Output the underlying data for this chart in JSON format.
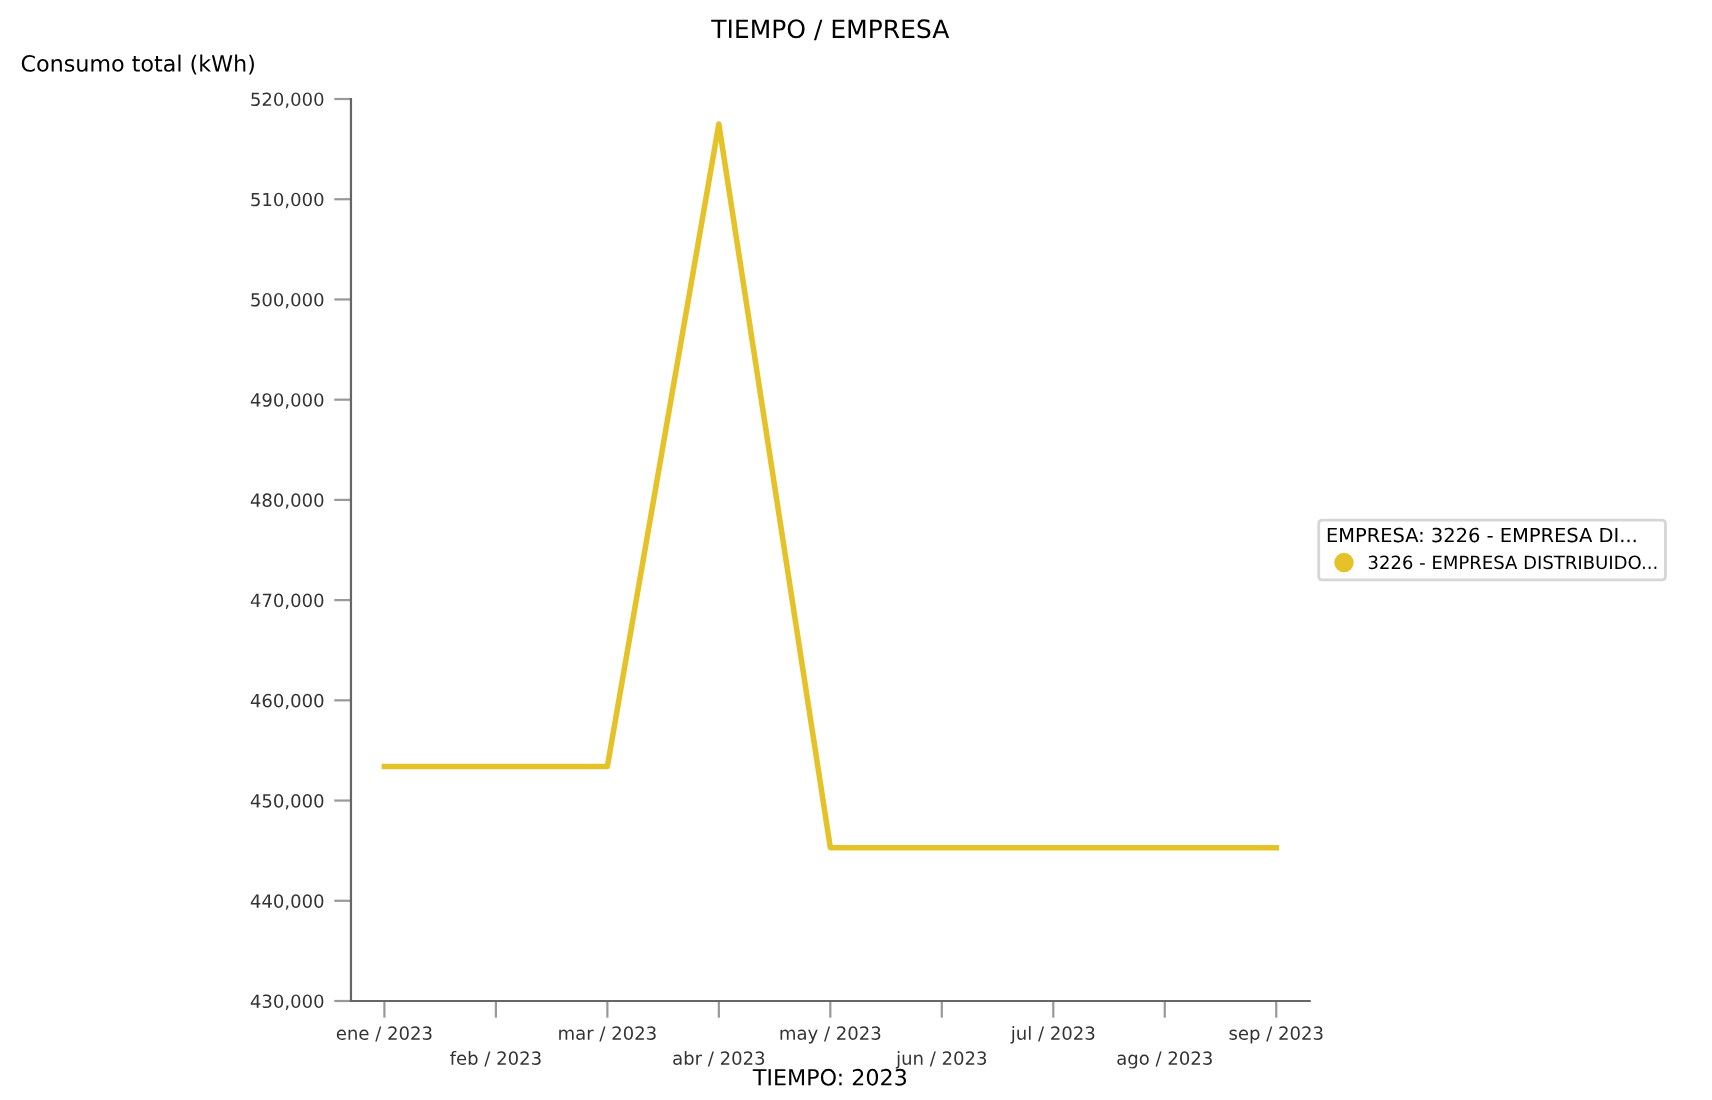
{
  "chart_data": {
    "type": "line",
    "title": "TIEMPO / EMPRESA",
    "xlabel": "TIEMPO: 2023",
    "ylabel": "Consumo total (kWh)",
    "legend_title": "EMPRESA: 3226 - EMPRESA DI...",
    "categories": [
      "ene / 2023",
      "feb / 2023",
      "mar / 2023",
      "abr / 2023",
      "may / 2023",
      "jun / 2023",
      "jul / 2023",
      "ago / 2023",
      "sep / 2023"
    ],
    "series": [
      {
        "name": "3226 - EMPRESA DISTRIBUIDO...",
        "color": "#e6c229",
        "values": [
          453400,
          453400,
          453400,
          517500,
          445300,
          445300,
          445300,
          445300,
          445300
        ]
      }
    ],
    "ylim": [
      430000,
      520000
    ],
    "yticks": [
      {
        "value": 430000,
        "label": "430,000"
      },
      {
        "value": 440000,
        "label": "440,000"
      },
      {
        "value": 450000,
        "label": "450,000"
      },
      {
        "value": 460000,
        "label": "460,000"
      },
      {
        "value": 470000,
        "label": "470,000"
      },
      {
        "value": 480000,
        "label": "480,000"
      },
      {
        "value": 490000,
        "label": "490,000"
      },
      {
        "value": 500000,
        "label": "500,000"
      },
      {
        "value": 510000,
        "label": "510,000"
      },
      {
        "value": 520000,
        "label": "520,000"
      }
    ],
    "grid": false,
    "legend": "right",
    "marker": "none",
    "line_style": "solid"
  }
}
